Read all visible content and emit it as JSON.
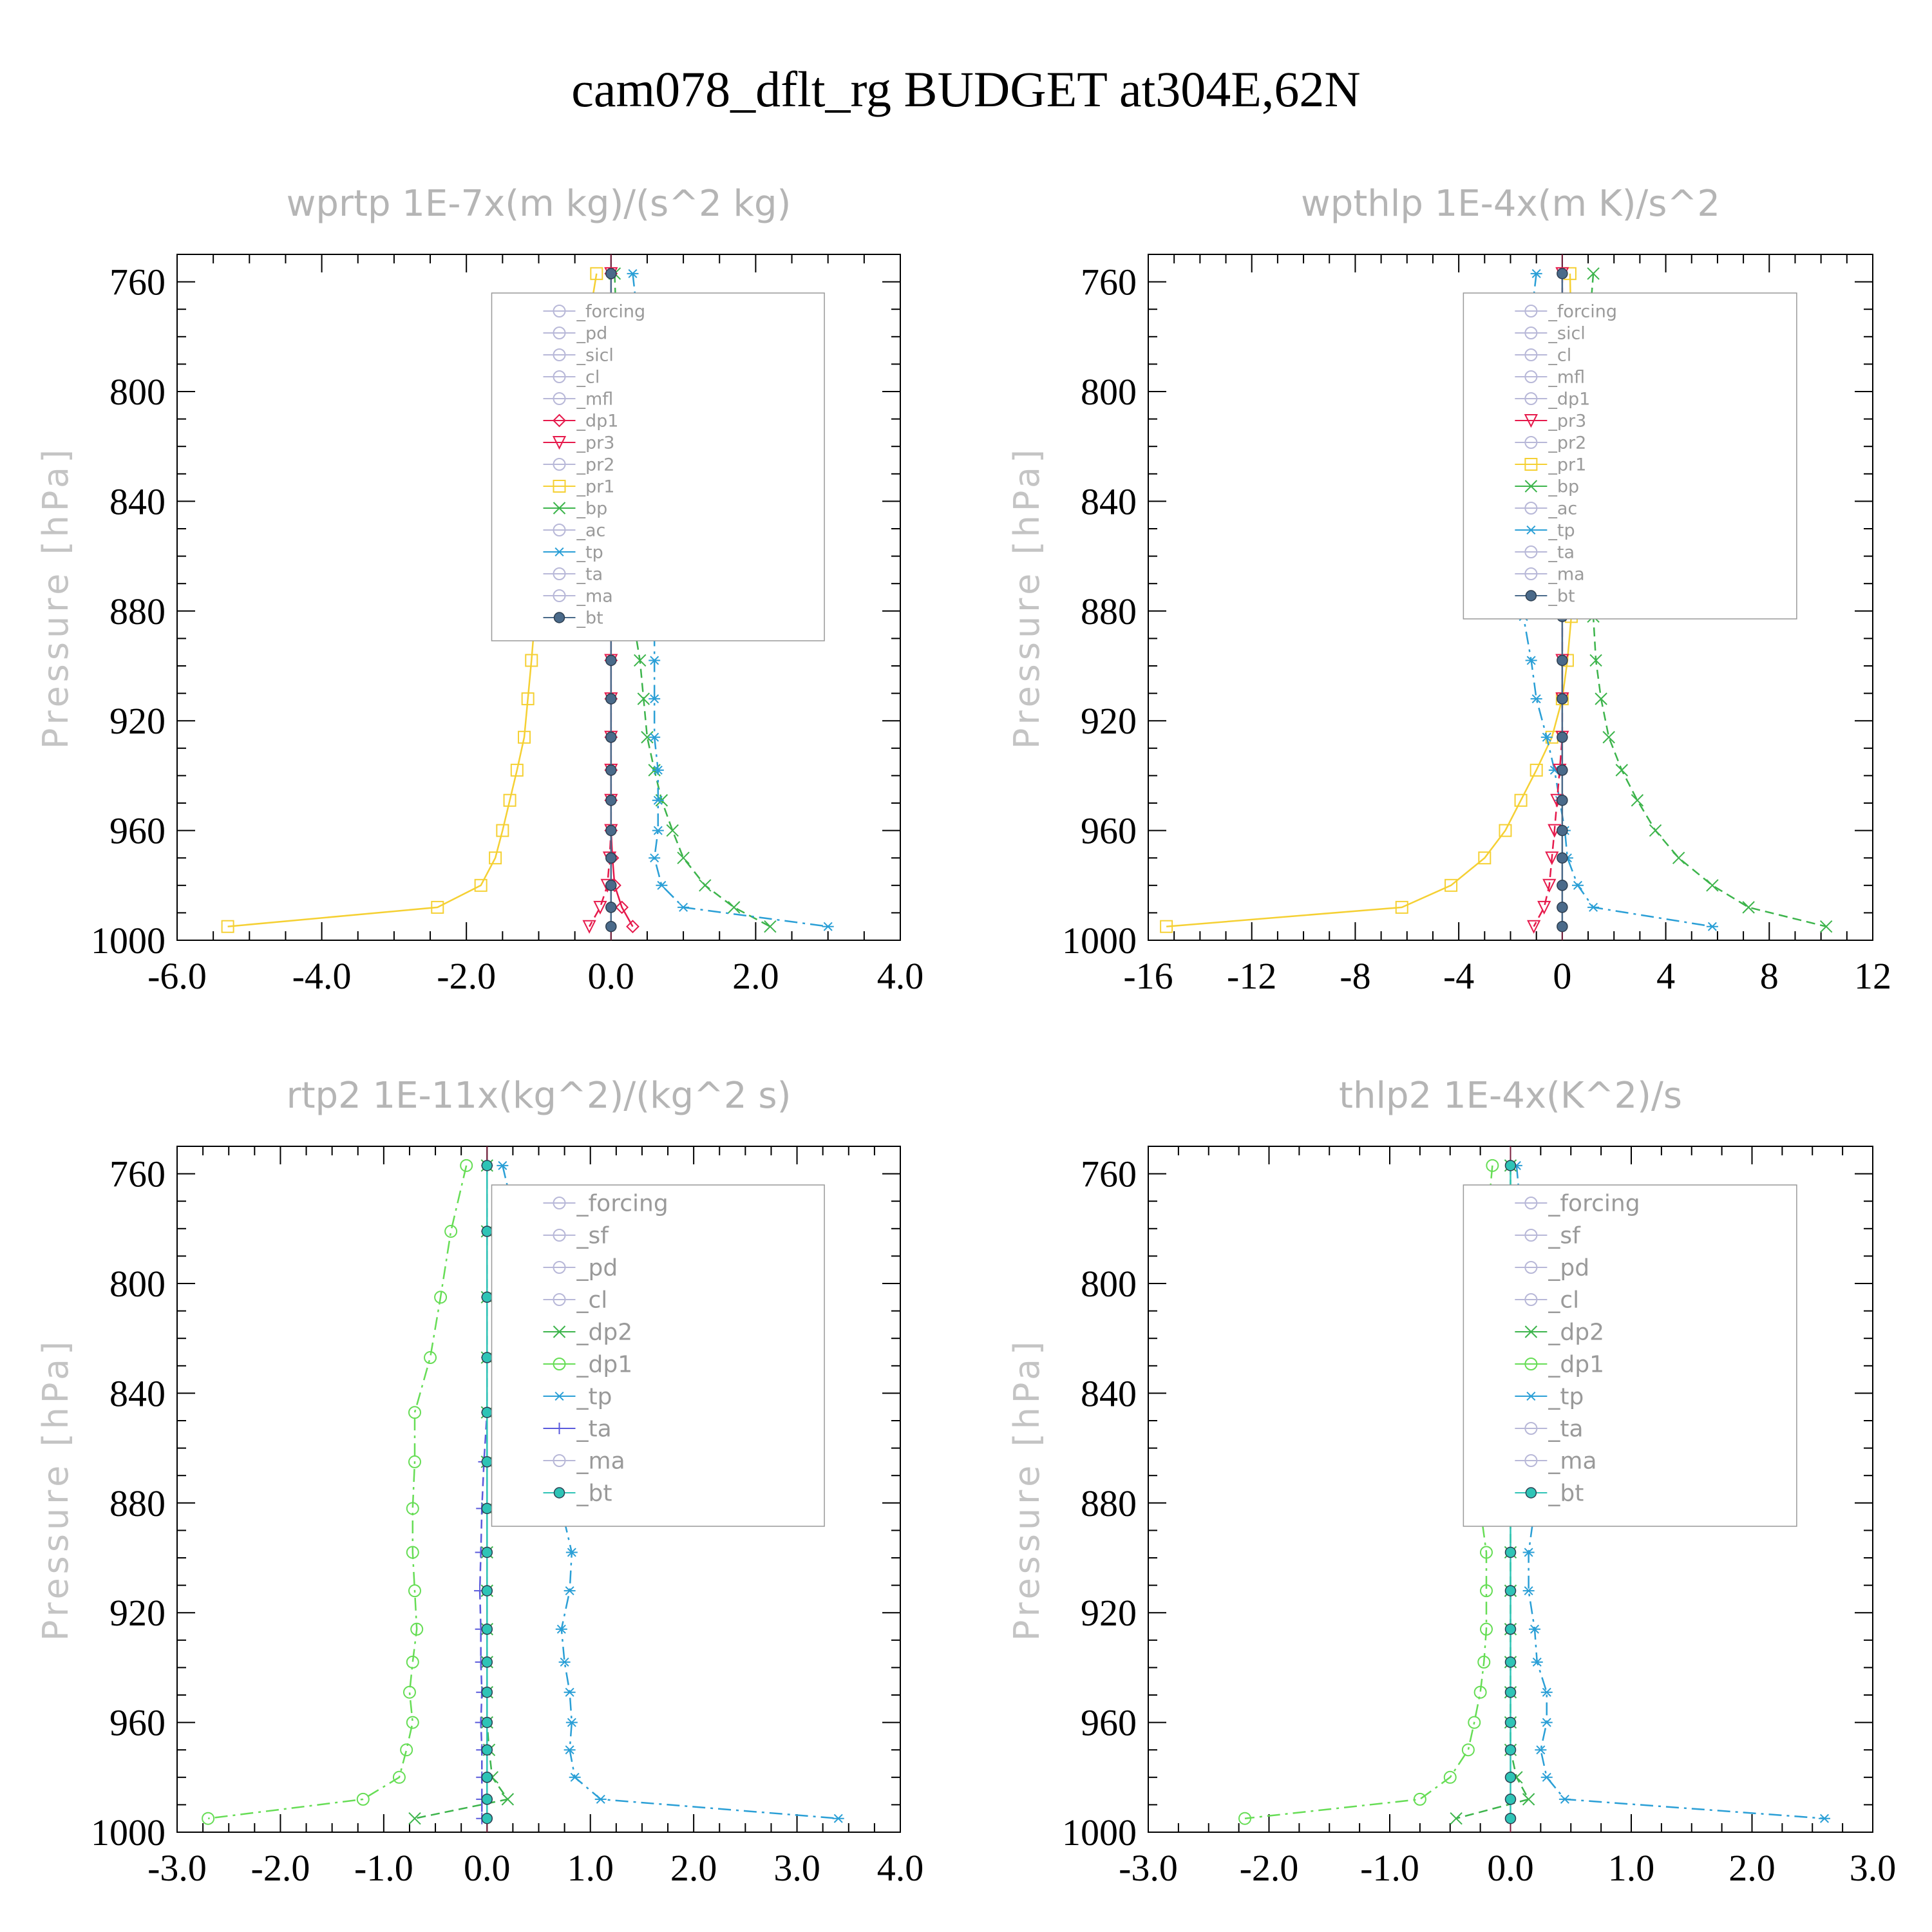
{
  "figure": {
    "title": "cam078_dflt_rg  BUDGET at304E,62N"
  },
  "chart_data": [
    {
      "type": "line",
      "title": "wprtp   1E-7x(m kg)/(s^2 kg)",
      "ylabel": "Pressure [hPa]",
      "xlim": [
        -6.0,
        4.0
      ],
      "ylim": [
        750,
        1000
      ],
      "y_inverted": true,
      "xticks": [
        "-6.0",
        "-4.0",
        "-2.0",
        "0.0",
        "2.0",
        "4.0"
      ],
      "yticks": [
        "760",
        "800",
        "840",
        "880",
        "920",
        "960",
        "1000"
      ],
      "y": [
        757,
        781,
        805,
        827,
        847,
        865,
        882,
        898,
        912,
        926,
        938,
        949,
        960,
        970,
        980,
        988,
        995
      ],
      "legend": [
        "_forcing",
        "_pd",
        "_sicl",
        "_cl",
        "_mfl",
        "_dp1",
        "_pr3",
        "_pr2",
        "_pr1",
        "_bp",
        "_ac",
        "_tp",
        "_ta",
        "_ma",
        "_bt"
      ],
      "series": [
        {
          "name": "_pr1",
          "color": "#f5d033",
          "marker": "square",
          "dash": "solid",
          "values": [
            -0.2,
            -0.35,
            -0.55,
            -0.75,
            -0.85,
            -0.95,
            -1.05,
            -1.1,
            -1.15,
            -1.2,
            -1.3,
            -1.4,
            -1.5,
            -1.6,
            -1.8,
            -2.4,
            -5.3
          ]
        },
        {
          "name": "_bp",
          "color": "#3cb44b",
          "marker": "x",
          "dash": "dash",
          "values": [
            0.05,
            0.08,
            0.1,
            0.12,
            0.15,
            0.2,
            0.3,
            0.4,
            0.45,
            0.5,
            0.6,
            0.7,
            0.85,
            1.0,
            1.3,
            1.7,
            2.2
          ]
        },
        {
          "name": "_tp",
          "color": "#2a9fd6",
          "marker": "star",
          "dash": "dashdot",
          "values": [
            0.3,
            0.4,
            0.45,
            0.5,
            0.55,
            0.6,
            0.6,
            0.6,
            0.6,
            0.6,
            0.65,
            0.65,
            0.65,
            0.6,
            0.7,
            1.0,
            3.0
          ]
        },
        {
          "name": "_dp1",
          "color": "#e6194b",
          "marker": "diamond",
          "dash": "solid",
          "values": [
            0,
            0,
            0,
            0,
            0,
            0,
            0,
            0,
            0,
            0,
            0,
            0,
            0,
            0.02,
            0.05,
            0.15,
            0.3
          ]
        },
        {
          "name": "_pr3",
          "color": "#e6194b",
          "marker": "tri-down",
          "dash": "dash",
          "values": [
            0,
            0,
            0,
            0,
            0,
            0,
            0,
            0,
            0,
            0,
            0,
            0,
            0,
            -0.02,
            -0.05,
            -0.15,
            -0.3
          ]
        },
        {
          "name": "_bt",
          "color": "#4a6a8a",
          "marker": "dot",
          "dash": "solid",
          "values": [
            0,
            0,
            0,
            0,
            0,
            0,
            0,
            0,
            0,
            0,
            0,
            0,
            0,
            0,
            0,
            0,
            0
          ]
        }
      ]
    },
    {
      "type": "line",
      "title": "wpthlp   1E-4x(m K)/s^2",
      "ylabel": "Pressure [hPa]",
      "xlim": [
        -16,
        12
      ],
      "ylim": [
        750,
        1000
      ],
      "y_inverted": true,
      "xticks": [
        "-16",
        "-12",
        "-8",
        "-4",
        "0",
        "4",
        "8",
        "12"
      ],
      "yticks": [
        "760",
        "800",
        "840",
        "880",
        "920",
        "960",
        "1000"
      ],
      "y": [
        757,
        781,
        805,
        827,
        847,
        865,
        882,
        898,
        912,
        926,
        938,
        949,
        960,
        970,
        980,
        988,
        995
      ],
      "legend": [
        "_forcing",
        "_sicl",
        "_cl",
        "_mfl",
        "_dp1",
        "_pr3",
        "_pr2",
        "_pr1",
        "_bp",
        "_ac",
        "_tp",
        "_ta",
        "_ma",
        "_bt"
      ],
      "series": [
        {
          "name": "_pr1",
          "color": "#f5d033",
          "marker": "square",
          "dash": "solid",
          "values": [
            0.3,
            0.35,
            0.4,
            0.45,
            0.45,
            0.4,
            0.35,
            0.2,
            0,
            -0.4,
            -1.0,
            -1.6,
            -2.2,
            -3.0,
            -4.3,
            -6.2,
            -15.3
          ]
        },
        {
          "name": "_bp",
          "color": "#3cb44b",
          "marker": "x",
          "dash": "dash",
          "values": [
            1.2,
            1.0,
            1.0,
            1.1,
            1.1,
            1.1,
            1.2,
            1.3,
            1.5,
            1.8,
            2.3,
            2.9,
            3.6,
            4.5,
            5.8,
            7.2,
            10.2
          ]
        },
        {
          "name": "_tp",
          "color": "#2a9fd6",
          "marker": "star",
          "dash": "dashdot",
          "values": [
            -1.0,
            -1.3,
            -1.5,
            -1.8,
            -2.0,
            -1.8,
            -1.5,
            -1.2,
            -1.0,
            -0.6,
            -0.3,
            -0.1,
            0.1,
            0.2,
            0.6,
            1.2,
            5.8
          ]
        },
        {
          "name": "_pr3",
          "color": "#e6194b",
          "marker": "tri-down",
          "dash": "dash",
          "values": [
            0,
            0,
            0,
            0,
            0,
            0,
            0,
            0,
            0,
            0,
            -0.1,
            -0.2,
            -0.3,
            -0.4,
            -0.5,
            -0.7,
            -1.1
          ]
        },
        {
          "name": "_bt",
          "color": "#4a6a8a",
          "marker": "dot",
          "dash": "solid",
          "values": [
            0,
            0,
            0,
            0,
            0,
            0,
            0,
            0,
            0,
            0,
            0,
            0,
            0,
            0,
            0,
            0,
            0
          ]
        }
      ]
    },
    {
      "type": "line",
      "title": "rtp2   1E-11x(kg^2)/(kg^2 s)",
      "ylabel": "Pressure [hPa]",
      "xlim": [
        -3.0,
        4.0
      ],
      "ylim": [
        750,
        1000
      ],
      "y_inverted": true,
      "xticks": [
        "-3.0",
        "-2.0",
        "-1.0",
        "0.0",
        "1.0",
        "2.0",
        "3.0",
        "4.0"
      ],
      "yticks": [
        "760",
        "800",
        "840",
        "880",
        "920",
        "960",
        "1000"
      ],
      "y": [
        757,
        781,
        805,
        827,
        847,
        865,
        882,
        898,
        912,
        926,
        938,
        949,
        960,
        970,
        980,
        988,
        995
      ],
      "legend": [
        "_forcing",
        "_sf",
        "_pd",
        "_cl",
        "_dp2",
        "_dp1",
        "_tp",
        "_ta",
        "_ma",
        "_bt"
      ],
      "series": [
        {
          "name": "_dp1",
          "color": "#66dd55",
          "marker": "circle",
          "dash": "dashdot",
          "values": [
            -0.2,
            -0.35,
            -0.45,
            -0.55,
            -0.7,
            -0.7,
            -0.72,
            -0.72,
            -0.7,
            -0.68,
            -0.72,
            -0.75,
            -0.72,
            -0.78,
            -0.85,
            -1.2,
            -2.7
          ]
        },
        {
          "name": "_tp",
          "color": "#2a9fd6",
          "marker": "star",
          "dash": "dashdot",
          "values": [
            0.15,
            0.3,
            0.45,
            0.55,
            0.65,
            0.72,
            0.72,
            0.82,
            0.8,
            0.72,
            0.75,
            0.8,
            0.82,
            0.8,
            0.85,
            1.1,
            3.4
          ]
        },
        {
          "name": "_dp2",
          "color": "#3cb44b",
          "marker": "x",
          "dash": "dash",
          "values": [
            0,
            0,
            0,
            0,
            0,
            0,
            0,
            0,
            0,
            0,
            0,
            0,
            0,
            0.02,
            0.05,
            0.2,
            -0.7
          ]
        },
        {
          "name": "_ta",
          "color": "#5a5adc",
          "marker": "plus",
          "dash": "dash",
          "values": [
            0,
            0,
            0,
            0,
            0,
            -0.03,
            -0.05,
            -0.06,
            -0.07,
            -0.06,
            -0.06,
            -0.05,
            -0.06,
            -0.05,
            -0.05,
            -0.05,
            -0.05
          ]
        },
        {
          "name": "_bt",
          "color": "#2ec4b6",
          "marker": "dot",
          "dash": "solid",
          "values": [
            0,
            0,
            0,
            0,
            0,
            0,
            0,
            0,
            0,
            0,
            0,
            0,
            0,
            0,
            0,
            0,
            0
          ]
        }
      ]
    },
    {
      "type": "line",
      "title": "thlp2   1E-4x(K^2)/s",
      "ylabel": "Pressure [hPa]",
      "xlim": [
        -3.0,
        3.0
      ],
      "ylim": [
        750,
        1000
      ],
      "y_inverted": true,
      "xticks": [
        "-3.0",
        "-2.0",
        "-1.0",
        "0.0",
        "1.0",
        "2.0",
        "3.0"
      ],
      "yticks": [
        "760",
        "800",
        "840",
        "880",
        "920",
        "960",
        "1000"
      ],
      "y": [
        757,
        781,
        805,
        827,
        847,
        865,
        882,
        898,
        912,
        926,
        938,
        949,
        960,
        970,
        980,
        988,
        995
      ],
      "legend": [
        "_forcing",
        "_sf",
        "_pd",
        "_cl",
        "_dp2",
        "_dp1",
        "_tp",
        "_ta",
        "_ma",
        "_bt"
      ],
      "series": [
        {
          "name": "_dp1",
          "color": "#66dd55",
          "marker": "circle",
          "dash": "dashdot",
          "values": [
            -0.15,
            -0.2,
            -0.2,
            -0.25,
            -0.3,
            -0.3,
            -0.25,
            -0.2,
            -0.2,
            -0.2,
            -0.22,
            -0.25,
            -0.3,
            -0.35,
            -0.5,
            -0.75,
            -2.2
          ]
        },
        {
          "name": "_tp",
          "color": "#2a9fd6",
          "marker": "star",
          "dash": "dashdot",
          "values": [
            0.05,
            0.1,
            0.15,
            0.2,
            0.25,
            0.25,
            0.2,
            0.15,
            0.15,
            0.2,
            0.22,
            0.3,
            0.3,
            0.25,
            0.3,
            0.45,
            2.6
          ]
        },
        {
          "name": "_dp2",
          "color": "#3cb44b",
          "marker": "x",
          "dash": "dash",
          "values": [
            0,
            0,
            0,
            0,
            0,
            0,
            0,
            0,
            0,
            0,
            0,
            0,
            0,
            0,
            0.05,
            0.15,
            -0.45
          ]
        },
        {
          "name": "_bt",
          "color": "#2ec4b6",
          "marker": "dot",
          "dash": "solid",
          "values": [
            0,
            0,
            0,
            0,
            0,
            0,
            0,
            0,
            0,
            0,
            0,
            0,
            0,
            0,
            0,
            0,
            0
          ]
        }
      ]
    }
  ]
}
